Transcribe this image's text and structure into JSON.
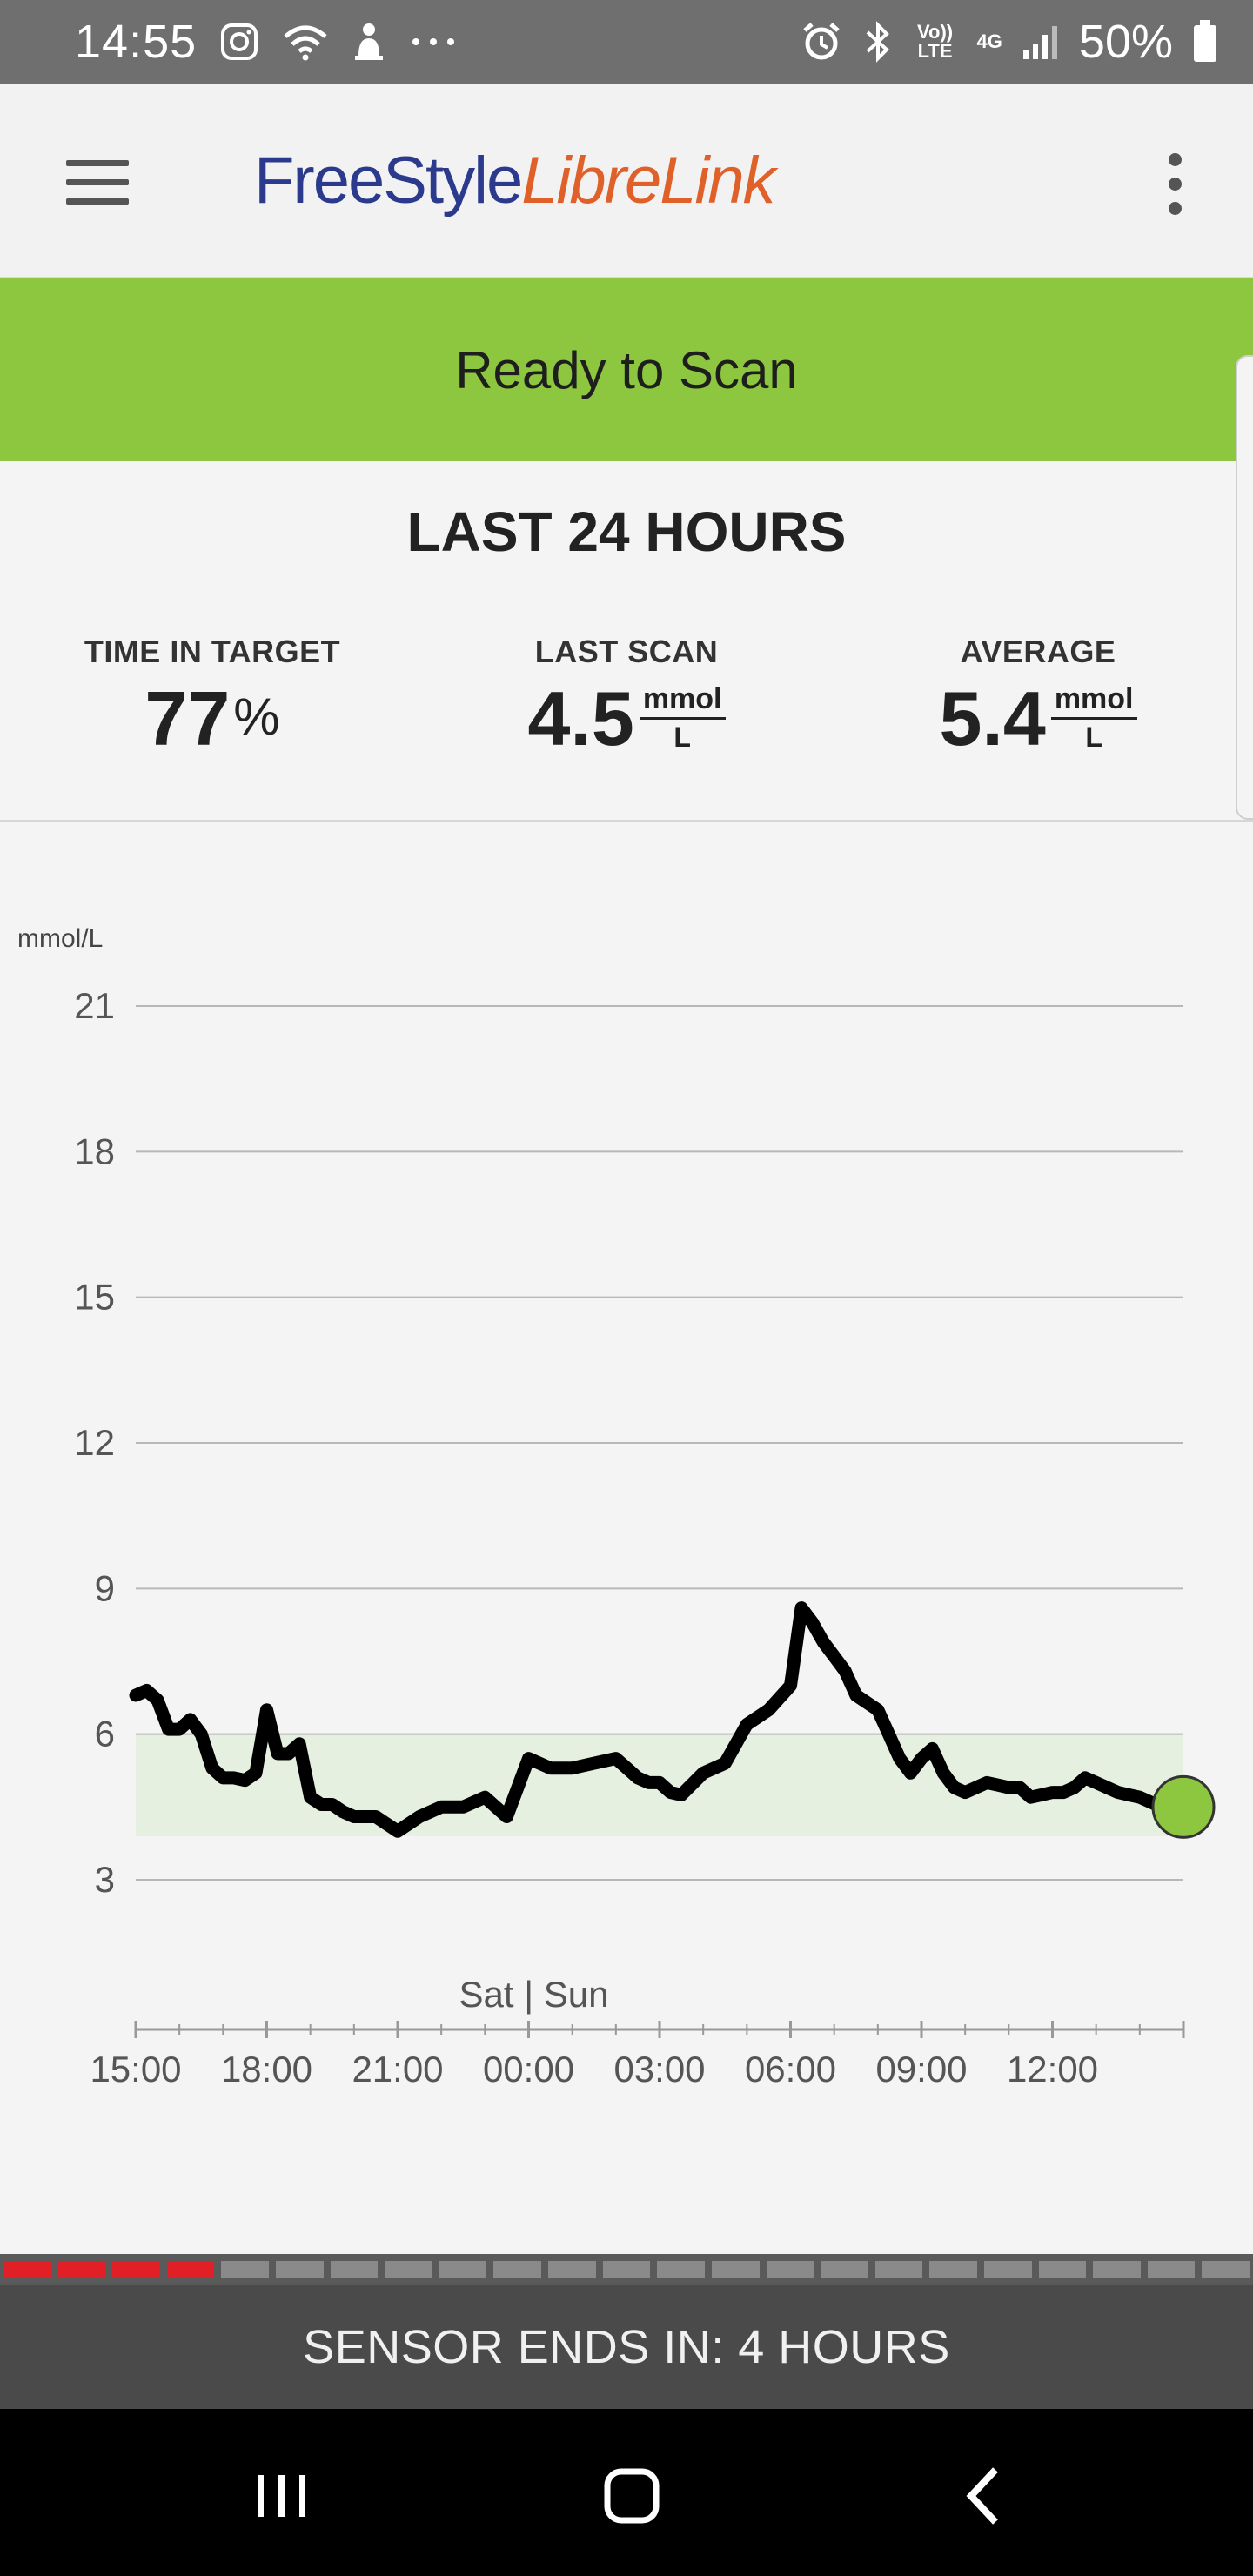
{
  "status_bar": {
    "time": "14:55",
    "left_icons": [
      "instagram-icon",
      "wifi-icon",
      "notification-icon",
      "more-dots-icon"
    ],
    "volte_label": "Vo)) LTE",
    "network_label": "4G",
    "battery_percent": "50%"
  },
  "app_bar": {
    "logo_part1": "FreeStyle",
    "logo_part2": "LibreLink",
    "logo_color_primary": "#2b3a8c",
    "logo_color_accent": "#e0602a"
  },
  "banner": {
    "text": "Ready to Scan",
    "color": "#8dc63f"
  },
  "summary": {
    "heading": "LAST 24 HOURS",
    "time_in_target": {
      "label": "TIME IN TARGET",
      "value": "77",
      "unit": "%"
    },
    "last_scan": {
      "label": "LAST SCAN",
      "value": "4.5",
      "unit_top": "mmol",
      "unit_bottom": "L"
    },
    "average": {
      "label": "AVERAGE",
      "value": "5.4",
      "unit_top": "mmol",
      "unit_bottom": "L"
    }
  },
  "chart_data": {
    "type": "line",
    "ylabel": "mmol/L",
    "yticks": [
      21,
      18,
      15,
      12,
      9,
      6,
      3
    ],
    "ylim": [
      0,
      21
    ],
    "xticks": [
      "15:00",
      "18:00",
      "21:00",
      "00:00",
      "03:00",
      "06:00",
      "09:00",
      "12:00"
    ],
    "xlim_hours": [
      0,
      24
    ],
    "day_label": "Sat | Sun",
    "target_range": [
      3.9,
      6.0
    ],
    "target_color": "#e6f0e0",
    "last_point_color": "#8dc63f",
    "grid": true,
    "series": [
      {
        "x": [
          0,
          0.25,
          0.5,
          0.75,
          1.0,
          1.25,
          1.5,
          1.75,
          2.0,
          2.25,
          2.5,
          2.75,
          3.0,
          3.25,
          3.5,
          3.75,
          4.0,
          4.25,
          4.5,
          4.75,
          5.0,
          5.5,
          6.0,
          6.5,
          7.0,
          7.5,
          7.75,
          8.0,
          8.5,
          9.0,
          9.5,
          10.0,
          10.5,
          11.0,
          11.25,
          11.5,
          11.75,
          12.0,
          12.25,
          12.5,
          13.0,
          13.5,
          14.0,
          14.5,
          15.0,
          15.25,
          15.5,
          15.75,
          16.0,
          16.25,
          16.5,
          17.0,
          17.25,
          17.5,
          17.75,
          18.0,
          18.25,
          18.5,
          18.75,
          19.0,
          19.5,
          20.0,
          20.25,
          20.5,
          20.75,
          21.0,
          21.25,
          21.5,
          21.75,
          22.0,
          22.25,
          22.5,
          22.75,
          23.0,
          23.25,
          23.5,
          24.0
        ],
        "y": [
          6.8,
          6.9,
          6.7,
          6.1,
          6.1,
          6.3,
          6.0,
          5.3,
          5.1,
          5.1,
          5.05,
          5.2,
          6.5,
          5.6,
          5.6,
          5.8,
          4.7,
          4.55,
          4.55,
          4.4,
          4.3,
          4.3,
          4.0,
          4.3,
          4.5,
          4.5,
          4.6,
          4.7,
          4.3,
          5.5,
          5.3,
          5.3,
          5.4,
          5.5,
          5.3,
          5.1,
          5.0,
          5.0,
          4.8,
          4.75,
          5.2,
          5.4,
          6.2,
          6.5,
          7.0,
          8.6,
          8.3,
          7.9,
          7.6,
          7.3,
          6.8,
          6.5,
          6.0,
          5.5,
          5.2,
          5.5,
          5.7,
          5.2,
          4.9,
          4.8,
          5.0,
          4.9,
          4.9,
          4.7,
          4.75,
          4.8,
          4.8,
          4.9,
          5.1,
          5.0,
          4.9,
          4.8,
          4.75,
          4.7,
          4.6,
          4.5,
          4.5
        ]
      }
    ]
  },
  "sensor": {
    "text": "SENSOR ENDS IN: 4 HOURS",
    "segments_total": 23,
    "segments_elapsed": 4,
    "elapsed_color": "#e01f26",
    "remaining_color": "#8a8a8a"
  }
}
